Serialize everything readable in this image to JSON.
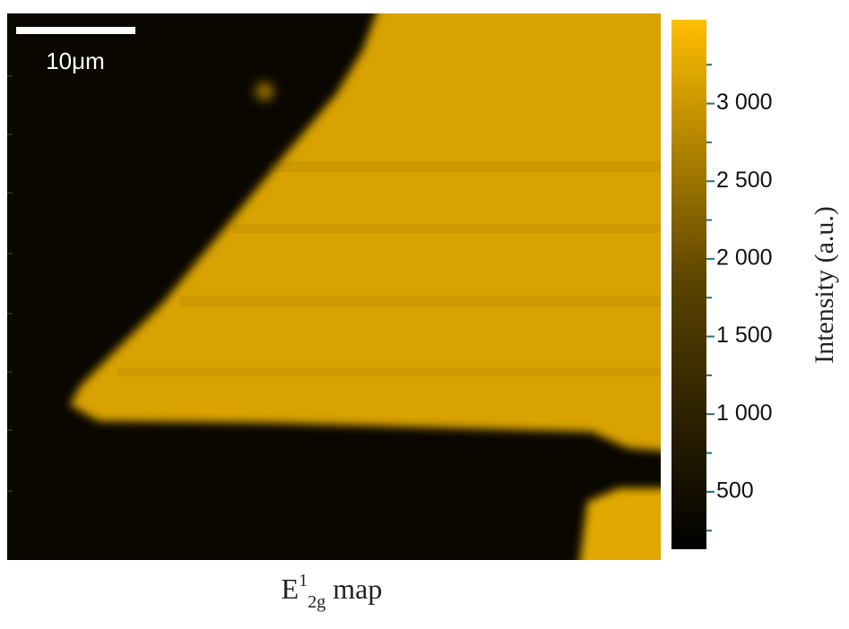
{
  "chart_data": {
    "type": "heatmap",
    "scale_bar_label": "10μm",
    "colorbar_label": "Intensity (a.u.)",
    "caption": {
      "base": "E",
      "sup": "1",
      "sub": "2g",
      "rest": "map"
    },
    "colormap": [
      "#000000",
      "#5a4300",
      "#ffbe00"
    ],
    "ylim": [
      130,
      3540
    ],
    "yticks": [
      {
        "value": 500,
        "label": "500"
      },
      {
        "value": 1000,
        "label": "1 000"
      },
      {
        "value": 1500,
        "label": "1 500"
      },
      {
        "value": 2000,
        "label": "2 000"
      },
      {
        "value": 2500,
        "label": "2 500"
      },
      {
        "value": 3000,
        "label": "3 000"
      }
    ],
    "minor_yticks": [
      250,
      750,
      1250,
      1750,
      2250,
      2750,
      3250
    ]
  }
}
